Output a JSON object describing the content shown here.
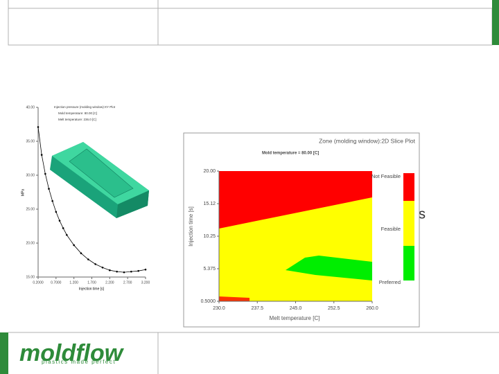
{
  "chart_data": [
    {
      "type": "line",
      "title": "Injection pressure (molding window):XY Plot",
      "subtitle": [
        "Mold temperature: 80.00 [C]",
        "Melt temperature: 236.0 [C]"
      ],
      "y_label": "MPa",
      "x_label": "Injection time [s]",
      "x": [
        0.2,
        0.3,
        0.4,
        0.5,
        0.6,
        0.7,
        0.8,
        0.9,
        1.0,
        1.2,
        1.4,
        1.6,
        1.8,
        2.0,
        2.2,
        2.4,
        2.6,
        2.8,
        3.0,
        3.2
      ],
      "series": [
        {
          "color": "#000000",
          "values": [
            37.1,
            33.0,
            30.2,
            28.0,
            26.2,
            24.6,
            23.3,
            22.2,
            21.2,
            19.7,
            18.5,
            17.6,
            16.9,
            16.4,
            16.0,
            15.8,
            15.7,
            15.8,
            15.9,
            16.1
          ]
        }
      ],
      "xlim": [
        0.2,
        3.2
      ],
      "ylim": [
        15,
        40
      ],
      "xticks": [
        {
          "value": 0.2,
          "label": "0.2000"
        },
        {
          "value": 0.7,
          "label": "0.7000"
        },
        {
          "value": 1.2,
          "label": "1.200"
        },
        {
          "value": 1.7,
          "label": "1.700"
        },
        {
          "value": 2.2,
          "label": "2.200"
        },
        {
          "value": 2.7,
          "label": "2.700"
        },
        {
          "value": 3.2,
          "label": "3.200"
        }
      ],
      "yticks": [
        {
          "value": 15,
          "label": "15.00"
        },
        {
          "value": 20,
          "label": "20.00"
        },
        {
          "value": 25,
          "label": "25.00"
        },
        {
          "value": 30,
          "label": "30.00"
        },
        {
          "value": 35,
          "label": "35.00"
        },
        {
          "value": 40,
          "label": "40.00"
        }
      ]
    },
    {
      "type": "zone",
      "title": "Zone (molding window):2D Slice Plot",
      "subtitle": "Mold temperature = 80.00 [C]",
      "y_label": "Injection time [s]",
      "x_label": "Melt temperature [C]",
      "xlim": [
        230,
        260
      ],
      "ylim": [
        0.5,
        20
      ],
      "xticks": [
        {
          "value": 230,
          "label": "230.0"
        },
        {
          "value": 237.5,
          "label": "237.5"
        },
        {
          "value": 245,
          "label": "245.0"
        },
        {
          "value": 252.5,
          "label": "252.5"
        },
        {
          "value": 260,
          "label": "260.0"
        }
      ],
      "yticks": [
        {
          "value": 0.5,
          "label": "0.5000"
        },
        5.375,
        10.25,
        15.12,
        {
          "value": 20,
          "label": "20.00"
        }
      ],
      "legend": [
        {
          "name": "Not Feasible",
          "color": "#ff0000"
        },
        {
          "name": "Feasible",
          "color": "#ffff00"
        },
        {
          "name": "Preferred",
          "color": "#00ee00"
        }
      ]
    }
  ],
  "slide_text": "s",
  "logo": {
    "name": "moldflow",
    "tagline": "plastics made perfect"
  }
}
